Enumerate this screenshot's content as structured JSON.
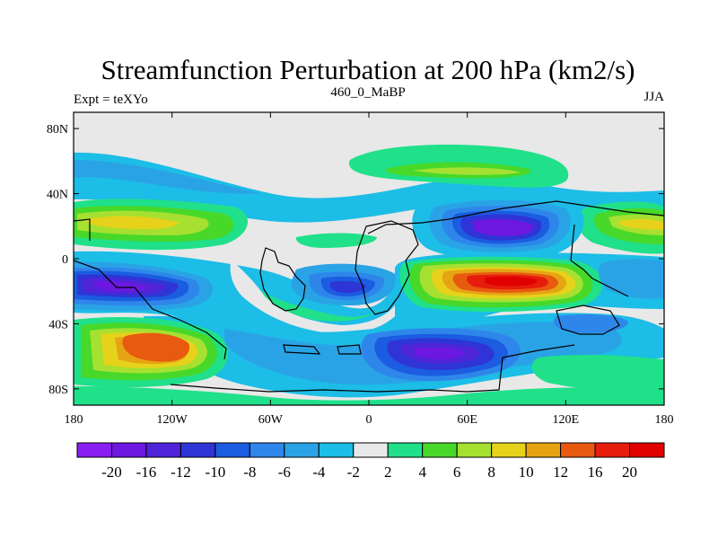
{
  "header": {
    "title": "Streamfunction Perturbation at 200 hPa (km2/s)",
    "left_label": "Expt = teXYo",
    "center_label": "460_0_MaBP",
    "right_label": "JJA"
  },
  "axes": {
    "y_ticks": [
      "80N",
      "40N",
      "0",
      "40S",
      "80S"
    ],
    "y_values": [
      80,
      40,
      0,
      -40,
      -80
    ],
    "x_ticks": [
      "180",
      "120W",
      "60W",
      "0",
      "60E",
      "120E",
      "180"
    ],
    "x_values": [
      -180,
      -120,
      -60,
      0,
      60,
      120,
      180
    ],
    "lon_range": [
      -180,
      180
    ],
    "lat_range": [
      -90,
      90
    ]
  },
  "colorbar": {
    "labels": [
      "-20",
      "-16",
      "-12",
      "-10",
      "-8",
      "-6",
      "-4",
      "-2",
      "2",
      "4",
      "6",
      "8",
      "10",
      "12",
      "16",
      "20"
    ],
    "colors": [
      "#8a1ef0",
      "#6d18e0",
      "#4f24d8",
      "#2f34d6",
      "#1b5ce0",
      "#2e86ea",
      "#2aa3e6",
      "#1cbde6",
      "#e8e8e8",
      "#20e08a",
      "#47d82a",
      "#a6e030",
      "#e6d21a",
      "#e6a414",
      "#e85a10",
      "#e61c0c",
      "#e00000"
    ]
  },
  "colors": {
    "background_field": "#e8e8e8",
    "coastline": "#000000"
  }
}
